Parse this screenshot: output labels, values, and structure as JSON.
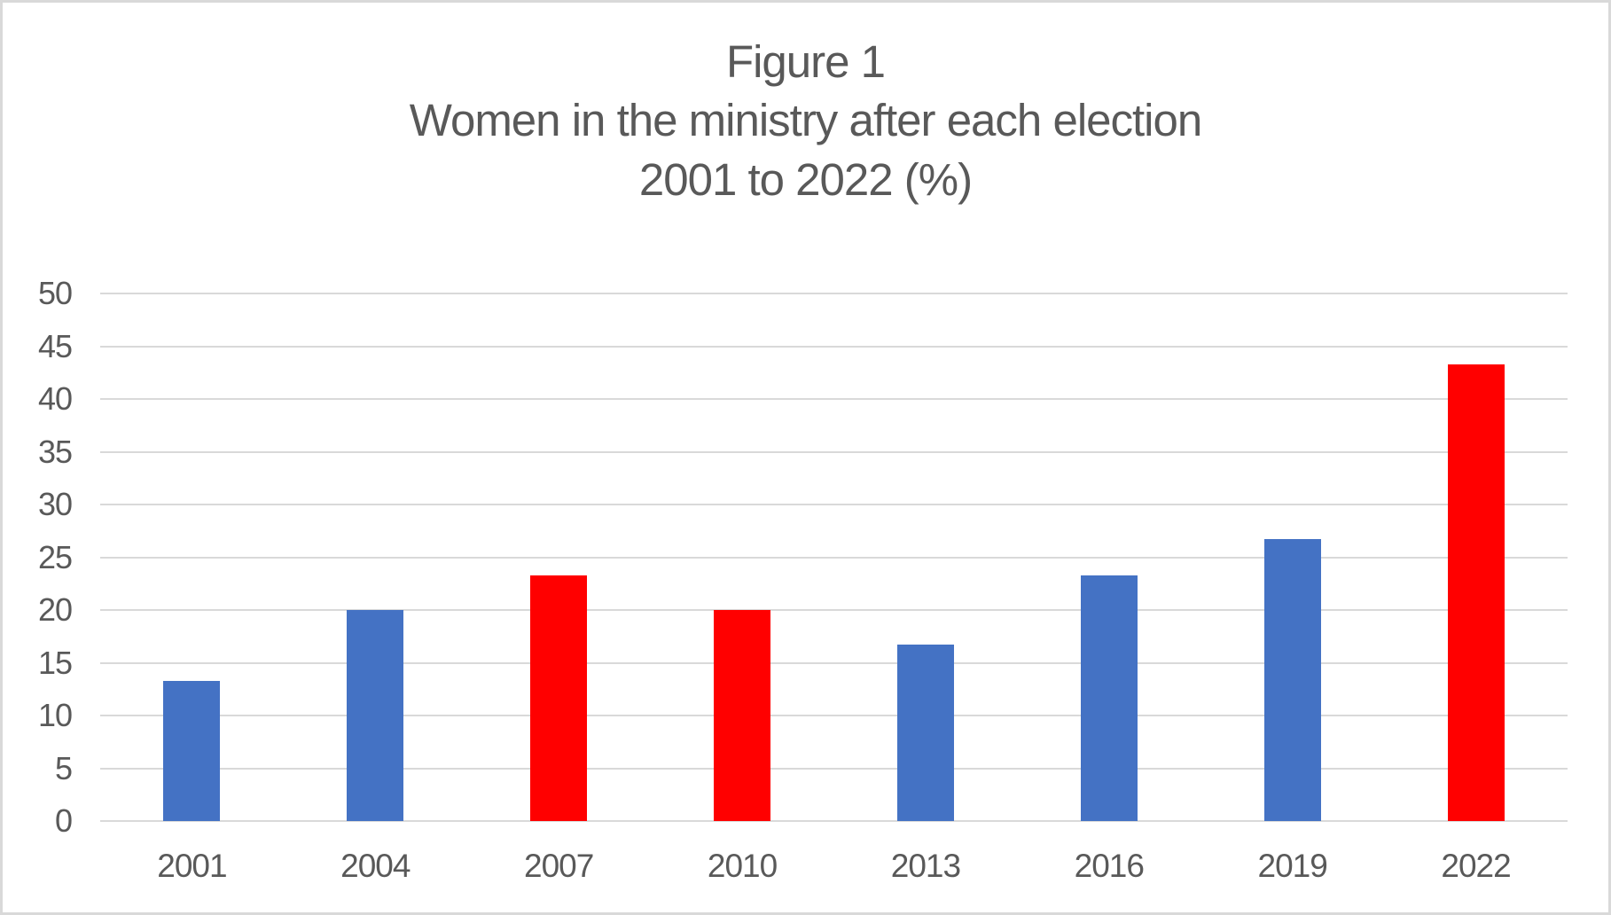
{
  "chart_data": {
    "type": "bar",
    "title_lines": [
      "Figure 1",
      "Women in the ministry after each election",
      "2001 to 2022 (%)"
    ],
    "title": "Figure 1 Women in the ministry after each election 2001 to 2022 (%)",
    "categories": [
      "2001",
      "2004",
      "2007",
      "2010",
      "2013",
      "2016",
      "2019",
      "2022"
    ],
    "values": [
      13.3,
      20,
      23.3,
      20,
      16.7,
      23.3,
      26.7,
      43.3
    ],
    "bar_colors": [
      "#4472C4",
      "#4472C4",
      "#FF0000",
      "#FF0000",
      "#4472C4",
      "#4472C4",
      "#4472C4",
      "#FF0000"
    ],
    "xlabel": "",
    "ylabel": "",
    "ylim": [
      0,
      50
    ],
    "yticks": [
      0,
      5,
      10,
      15,
      20,
      25,
      30,
      35,
      40,
      45,
      50
    ],
    "grid": true,
    "legend_position": "none",
    "colors": {
      "bar_blue": "#4472C4",
      "bar_red": "#FF0000",
      "gridline": "#D9D9D9",
      "text": "#595959",
      "frame_border": "#D9D9D9",
      "background": "#FFFFFF"
    }
  }
}
